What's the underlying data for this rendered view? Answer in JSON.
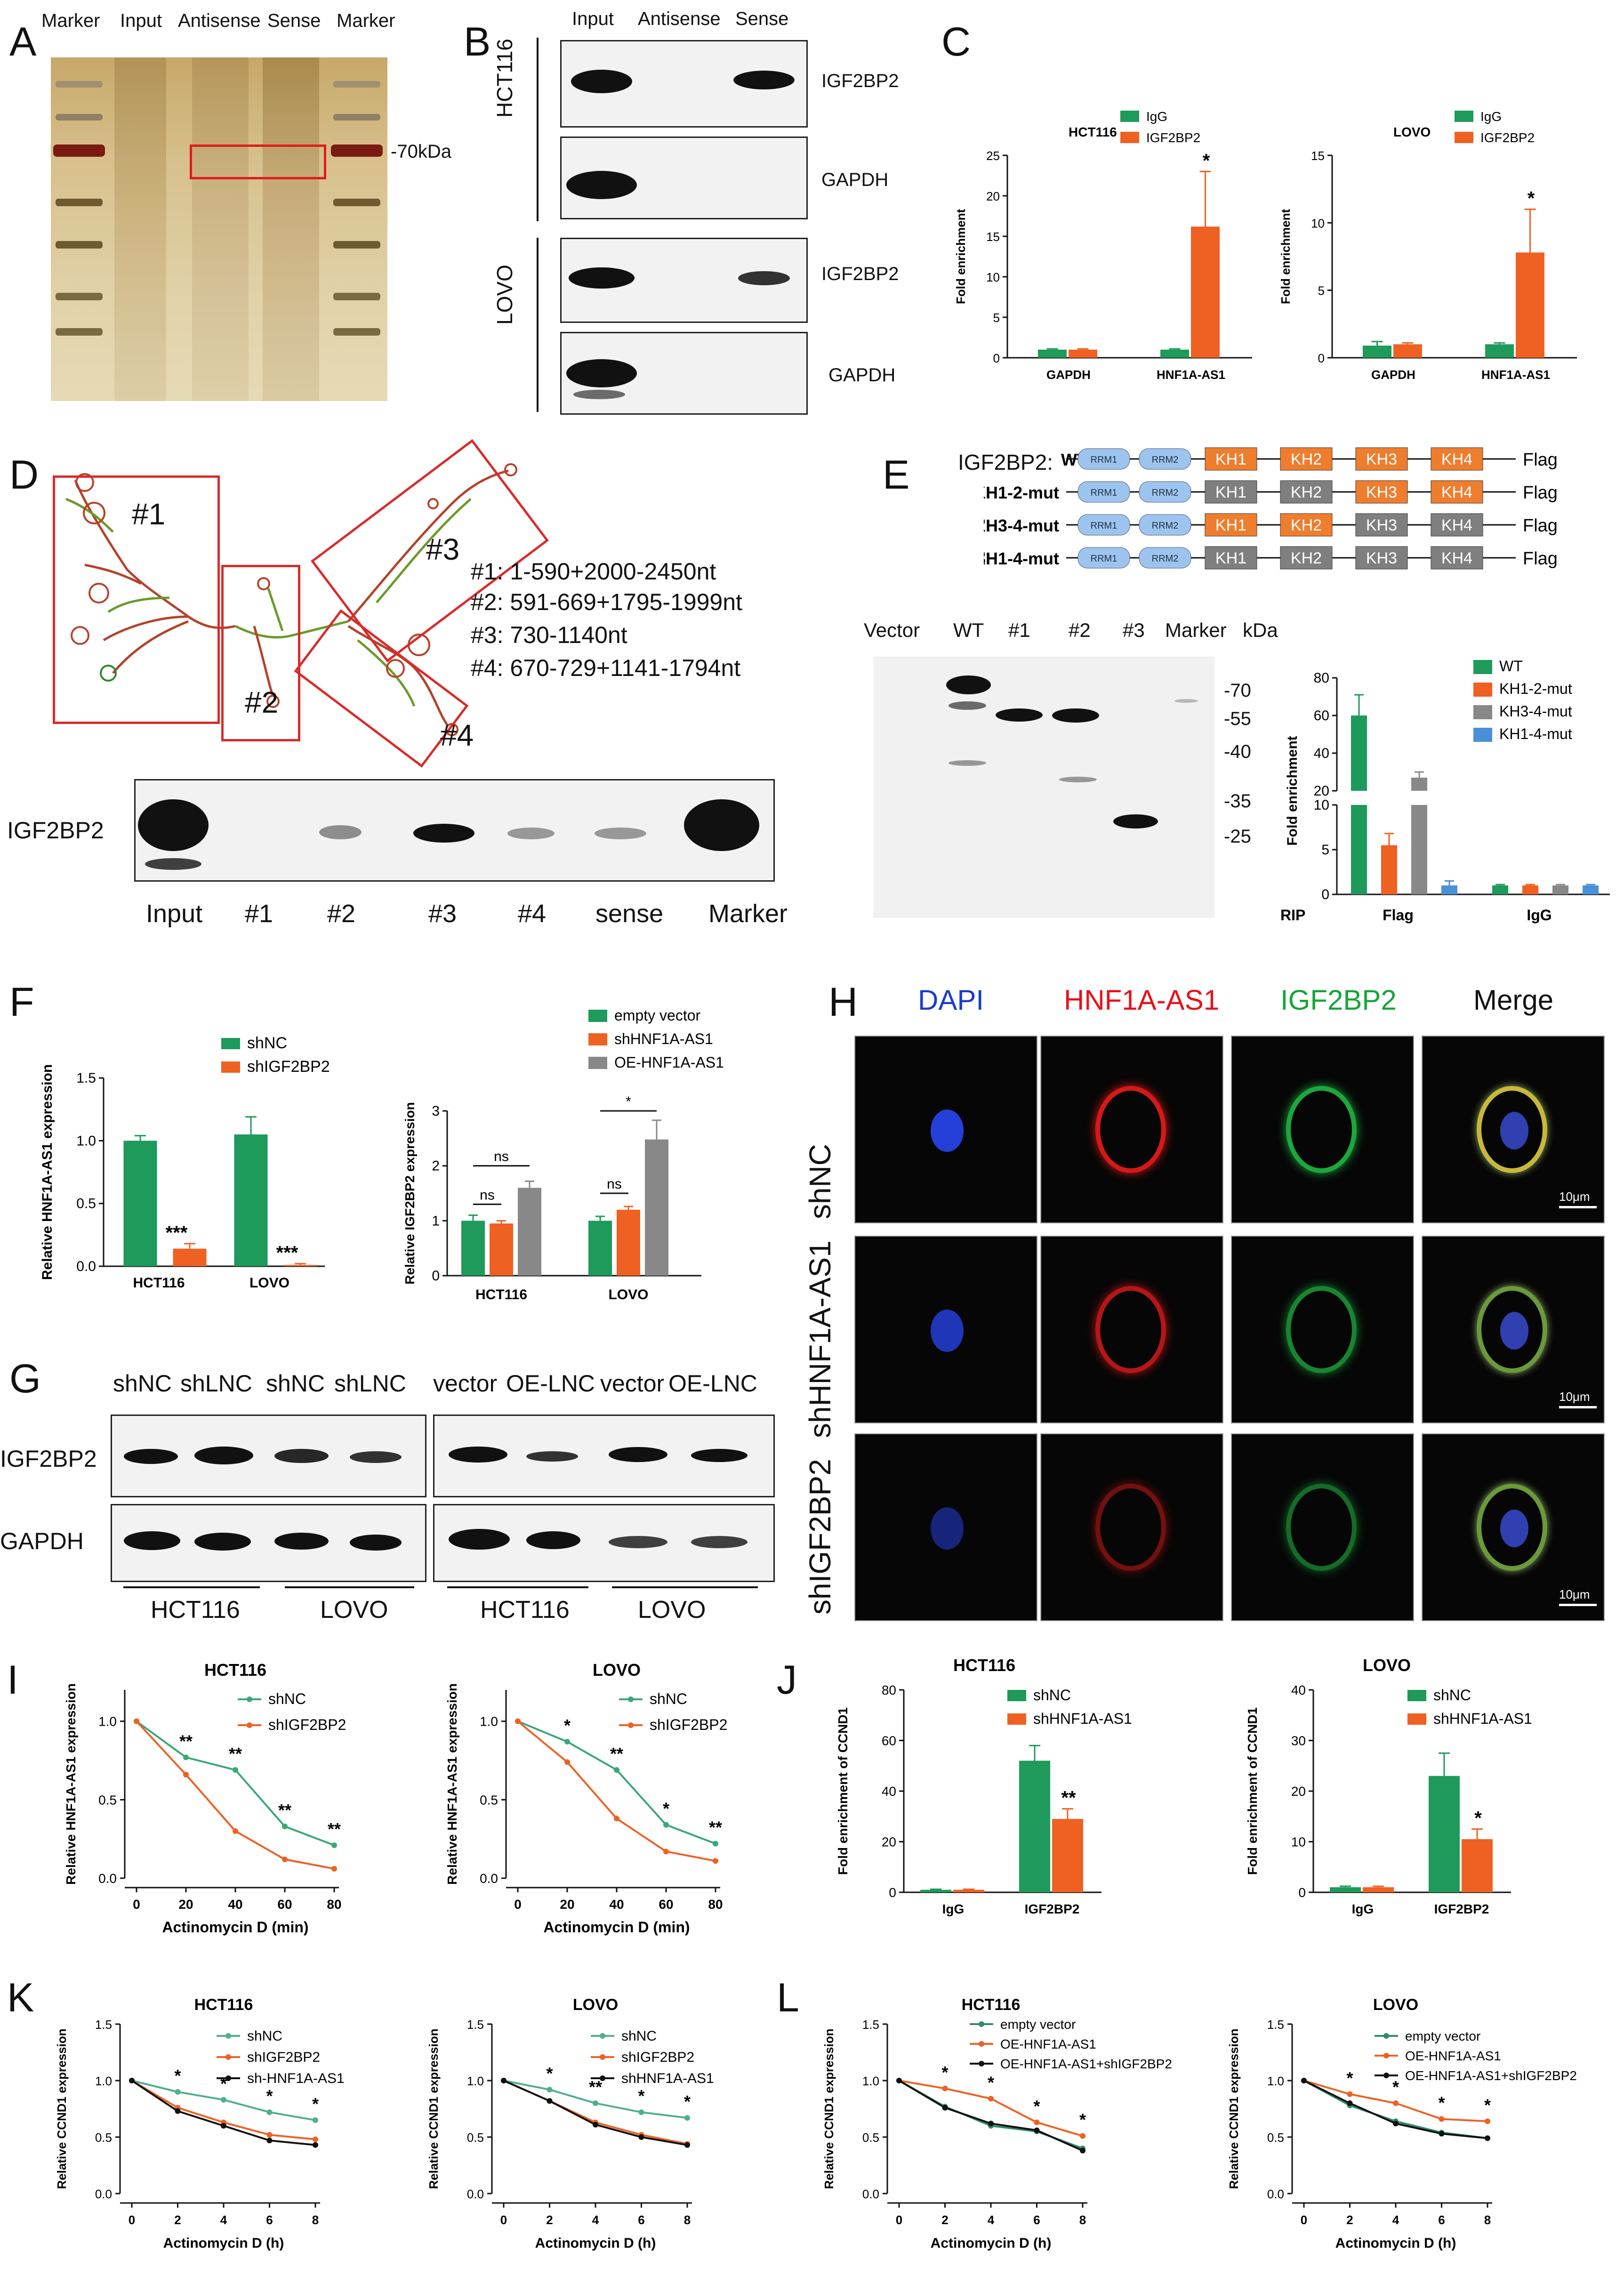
{
  "A": {
    "label": "A",
    "cols": [
      "Marker",
      "Input",
      "Antisense",
      "Sense",
      "Marker"
    ],
    "kda": "-70kDa"
  },
  "B": {
    "label": "B",
    "cols": [
      "Input",
      "Antisense",
      "Sense"
    ],
    "cells": [
      "HCT116",
      "LOVO"
    ],
    "proteins": [
      "IGF2BP2",
      "GAPDH",
      "IGF2BP2",
      "GAPDH"
    ]
  },
  "C": {
    "label": "C",
    "y_label": "Fold enrichment"
  },
  "D": {
    "label": "D",
    "region_ids": [
      "#1",
      "#2",
      "#3",
      "#4"
    ],
    "regions": [
      "#1: 1-590+2000-2450nt",
      "#2: 591-669+1795-1999nt",
      "#3: 730-1140nt",
      "#4: 670-729+1141-1794nt"
    ],
    "blot_label": "IGF2BP2",
    "lanes": [
      "Input",
      "#1",
      "#2",
      "#3",
      "#4",
      "sense",
      "Marker"
    ]
  },
  "E": {
    "label": "E",
    "title": "IGF2BP2:",
    "constructs": [
      {
        "id": "",
        "name": "WT",
        "domains": [
          "RRM1",
          "RRM2",
          "KH1",
          "KH2",
          "KH3",
          "KH4"
        ],
        "mut": [
          false,
          false,
          false,
          false
        ]
      },
      {
        "id": "#1:",
        "name": "KH1-2-mut",
        "domains": [
          "RRM1",
          "RRM2",
          "KH1",
          "KH2",
          "KH3",
          "KH4"
        ],
        "mut": [
          true,
          true,
          false,
          false
        ]
      },
      {
        "id": "#2:",
        "name": "KH3-4-mut",
        "domains": [
          "RRM1",
          "RRM2",
          "KH1",
          "KH2",
          "KH3",
          "KH4"
        ],
        "mut": [
          false,
          false,
          true,
          true
        ]
      },
      {
        "id": "#3:",
        "name": "KH1-4-mut",
        "domains": [
          "RRM1",
          "RRM2",
          "KH1",
          "KH2",
          "KH3",
          "KH4"
        ],
        "mut": [
          true,
          true,
          true,
          true
        ]
      }
    ],
    "tag": "Flag",
    "lanes": [
      "Vector",
      "WT",
      "#1",
      "#2",
      "#3",
      "Marker",
      "kDa"
    ],
    "markers": [
      "-70",
      "-55",
      "-40",
      "-35",
      "-25"
    ]
  },
  "F": {
    "label": "F"
  },
  "G": {
    "label": "G",
    "left_lanes": [
      "shNC",
      "shLNC",
      "shNC",
      "shLNC"
    ],
    "right_lanes": [
      "vector",
      "OE-LNC",
      "vector",
      "OE-LNC"
    ],
    "proteins": [
      "IGF2BP2",
      "GAPDH"
    ],
    "cells": [
      "HCT116",
      "LOVO",
      "HCT116",
      "LOVO"
    ]
  },
  "H": {
    "label": "H",
    "channels": [
      "DAPI",
      "HNF1A-AS1",
      "IGF2BP2",
      "Merge"
    ],
    "channel_colors": [
      "#1a3bd0",
      "#e8101a",
      "#17a43c",
      "#111111"
    ],
    "rows": [
      "shNC",
      "shHNF1A-AS1",
      "shIGF2BP2"
    ],
    "scale": "10μm"
  },
  "I": {
    "label": "I"
  },
  "J": {
    "label": "J"
  },
  "K": {
    "label": "K"
  },
  "L": {
    "label": "L"
  },
  "colors": {
    "green": "#1e9a5a",
    "orange": "#ee6123",
    "gray": "#888888",
    "blue": "#4a90d9",
    "black": "#111111"
  },
  "chart_data": [
    {
      "id": "C1",
      "type": "bar",
      "title": "HCT116",
      "categories": [
        "GAPDH",
        "HNF1A-AS1"
      ],
      "ylabel": "Fold enrichment",
      "ylim": [
        0,
        25
      ],
      "yticks": [
        0,
        5,
        10,
        15,
        20,
        25
      ],
      "series": [
        {
          "name": "IgG",
          "values": [
            1.0,
            1.0
          ],
          "err": [
            0.1,
            0.1
          ]
        },
        {
          "name": "IGF2BP2",
          "values": [
            1.0,
            16.2
          ],
          "err": [
            0.1,
            6.8
          ]
        }
      ],
      "sig": [
        {
          "cat": 1,
          "text": "*"
        }
      ]
    },
    {
      "id": "C2",
      "type": "bar",
      "title": "LOVO",
      "categories": [
        "GAPDH",
        "HNF1A-AS1"
      ],
      "ylabel": "Fold enrichment",
      "ylim": [
        0,
        15
      ],
      "yticks": [
        0,
        5,
        10,
        15
      ],
      "series": [
        {
          "name": "IgG",
          "values": [
            0.9,
            1.0
          ],
          "err": [
            0.3,
            0.1
          ]
        },
        {
          "name": "IGF2BP2",
          "values": [
            1.0,
            7.8
          ],
          "err": [
            0.1,
            3.2
          ]
        }
      ],
      "sig": [
        {
          "cat": 1,
          "text": "*"
        }
      ]
    },
    {
      "id": "E1",
      "type": "bar",
      "categories": [
        "Flag",
        "IgG"
      ],
      "xlabel_prefix": "RIP",
      "ylabel": "Fold enrichment",
      "broken": true,
      "yticks": [
        0,
        5,
        10,
        20,
        40,
        60,
        80
      ],
      "series": [
        {
          "name": "WT",
          "values": [
            60,
            1.0
          ],
          "err": [
            11,
            0.1
          ]
        },
        {
          "name": "KH1-2-mut",
          "values": [
            5.5,
            1.0
          ],
          "err": [
            1.3,
            0.1
          ]
        },
        {
          "name": "KH3-4-mut",
          "values": [
            27,
            1.0
          ],
          "err": [
            3,
            0.1
          ]
        },
        {
          "name": "KH1-4-mut",
          "values": [
            1.0,
            1.0
          ],
          "err": [
            0.5,
            0.1
          ]
        }
      ]
    },
    {
      "id": "F1",
      "type": "bar",
      "categories": [
        "HCT116",
        "LOVO"
      ],
      "ylabel": "Relative HNF1A-AS1 expression",
      "ylim": [
        0,
        1.5
      ],
      "yticks": [
        0.0,
        0.5,
        1.0,
        1.5
      ],
      "series": [
        {
          "name": "shNC",
          "values": [
            1.0,
            1.05
          ],
          "err": [
            0.04,
            0.14
          ]
        },
        {
          "name": "shIGF2BP2",
          "values": [
            0.14,
            0.01
          ],
          "err": [
            0.04,
            0.01
          ]
        }
      ],
      "sig": [
        {
          "cat": 0,
          "text": "***"
        },
        {
          "cat": 1,
          "text": "***"
        }
      ]
    },
    {
      "id": "F2",
      "type": "bar",
      "categories": [
        "HCT116",
        "LOVO"
      ],
      "ylabel": "Relative IGF2BP2 expression",
      "ylim": [
        0,
        3
      ],
      "yticks": [
        0,
        1,
        2,
        3
      ],
      "series": [
        {
          "name": "empty vector",
          "values": [
            1.0,
            1.0
          ],
          "err": [
            0.1,
            0.08
          ]
        },
        {
          "name": "shHNF1A-AS1",
          "values": [
            0.95,
            1.2
          ],
          "err": [
            0.05,
            0.06
          ]
        },
        {
          "name": "OE-HNF1A-AS1",
          "values": [
            1.6,
            2.48
          ],
          "err": [
            0.12,
            0.35
          ]
        }
      ],
      "sig": [
        {
          "text": "ns",
          "scope": "HCT116 vector vs sh"
        },
        {
          "text": "ns",
          "scope": "HCT116 vector vs OE"
        },
        {
          "text": "ns",
          "scope": "LOVO vector vs sh"
        },
        {
          "text": "*",
          "scope": "LOVO vector vs OE"
        }
      ]
    },
    {
      "id": "I1",
      "type": "line",
      "title": "HCT116",
      "x": [
        0,
        20,
        40,
        60,
        80
      ],
      "xlabel": "Actinomycin D (min)",
      "ylabel": "Relative HNF1A-AS1 expression",
      "xlim": [
        0,
        80
      ],
      "ylim": [
        0,
        1.2
      ],
      "yticks": [
        0.0,
        0.5,
        1.0
      ],
      "series": [
        {
          "name": "shNC",
          "values": [
            1.0,
            0.77,
            0.69,
            0.33,
            0.21
          ]
        },
        {
          "name": "shIGF2BP2",
          "values": [
            1.0,
            0.66,
            0.3,
            0.12,
            0.06
          ]
        }
      ],
      "sig": [
        "",
        "**",
        "**",
        "**",
        "**"
      ]
    },
    {
      "id": "I2",
      "type": "line",
      "title": "LOVO",
      "x": [
        0,
        20,
        40,
        60,
        80
      ],
      "xlabel": "Actinomycin D (min)",
      "ylabel": "Relative HNF1A-AS1 expression",
      "xlim": [
        0,
        80
      ],
      "ylim": [
        0,
        1.2
      ],
      "yticks": [
        0.0,
        0.5,
        1.0
      ],
      "series": [
        {
          "name": "shNC",
          "values": [
            1.0,
            0.87,
            0.69,
            0.34,
            0.22
          ]
        },
        {
          "name": "shIGF2BP2",
          "values": [
            1.0,
            0.74,
            0.38,
            0.17,
            0.11
          ]
        }
      ],
      "sig": [
        "",
        "*",
        "**",
        "*",
        "**"
      ]
    },
    {
      "id": "J1",
      "type": "bar",
      "title": "HCT116",
      "categories": [
        "IgG",
        "IGF2BP2"
      ],
      "ylabel": "Fold enrichment of CCND1",
      "ylim": [
        0,
        80
      ],
      "yticks": [
        0,
        20,
        40,
        60,
        80
      ],
      "series": [
        {
          "name": "shNC",
          "values": [
            1.0,
            52
          ]
        },
        {
          "name": "shHNF1A-AS1",
          "values": [
            1.0,
            29
          ]
        }
      ],
      "err": [
        [
          0.2,
          6
        ],
        [
          0.2,
          4
        ]
      ],
      "sig": [
        {
          "cat": 1,
          "text": "**"
        }
      ]
    },
    {
      "id": "J2",
      "type": "bar",
      "title": "LOVO",
      "categories": [
        "IgG",
        "IGF2BP2"
      ],
      "ylabel": "Fold enrichment of CCND1",
      "ylim": [
        0,
        40
      ],
      "yticks": [
        0,
        10,
        20,
        30,
        40
      ],
      "series": [
        {
          "name": "shNC",
          "values": [
            1.0,
            23
          ]
        },
        {
          "name": "shHNF1A-AS1",
          "values": [
            1.0,
            10.5
          ]
        }
      ],
      "err": [
        [
          0.2,
          4.5
        ],
        [
          0.2,
          2
        ]
      ],
      "sig": [
        {
          "cat": 1,
          "text": "*"
        }
      ]
    },
    {
      "id": "K1",
      "type": "line",
      "title": "HCT116",
      "x": [
        0,
        2,
        4,
        6,
        8
      ],
      "xlabel": "Actinomycin D (h)",
      "ylabel": "Relative CCND1 expression",
      "xlim": [
        0,
        8
      ],
      "ylim": [
        0,
        1.5
      ],
      "yticks": [
        0.0,
        0.5,
        1.0,
        1.5
      ],
      "series": [
        {
          "name": "shNC",
          "values": [
            1.0,
            0.9,
            0.83,
            0.72,
            0.65
          ]
        },
        {
          "name": "shIGF2BP2",
          "values": [
            1.0,
            0.76,
            0.63,
            0.52,
            0.48
          ]
        },
        {
          "name": "sh-HNF1A-AS1",
          "values": [
            1.0,
            0.73,
            0.6,
            0.47,
            0.43
          ]
        }
      ],
      "sig": [
        "",
        "*",
        "*",
        "*",
        "*"
      ]
    },
    {
      "id": "K2",
      "type": "line",
      "title": "LOVO",
      "x": [
        0,
        2,
        4,
        6,
        8
      ],
      "xlabel": "Actinomycin D (h)",
      "ylabel": "Relative CCND1 expression",
      "xlim": [
        0,
        8
      ],
      "ylim": [
        0,
        1.5
      ],
      "yticks": [
        0.0,
        0.5,
        1.0,
        1.5
      ],
      "series": [
        {
          "name": "shNC",
          "values": [
            1.0,
            0.92,
            0.8,
            0.72,
            0.67
          ]
        },
        {
          "name": "shIGF2BP2",
          "values": [
            1.0,
            0.82,
            0.63,
            0.52,
            0.44
          ]
        },
        {
          "name": "shHNF1A-AS1",
          "values": [
            1.0,
            0.82,
            0.61,
            0.5,
            0.43
          ]
        }
      ],
      "sig": [
        "",
        "*",
        "**",
        "*",
        "*"
      ]
    },
    {
      "id": "L1",
      "type": "line",
      "title": "HCT116",
      "x": [
        0,
        2,
        4,
        6,
        8
      ],
      "xlabel": "Actinomycin D (h)",
      "ylabel": "Relative CCND1 expression",
      "xlim": [
        0,
        8
      ],
      "ylim": [
        0,
        1.5
      ],
      "yticks": [
        0.0,
        0.5,
        1.0,
        1.5
      ],
      "series": [
        {
          "name": "empty vector",
          "values": [
            1.0,
            0.77,
            0.6,
            0.55,
            0.4
          ]
        },
        {
          "name": "OE-HNF1A-AS1",
          "values": [
            1.0,
            0.93,
            0.84,
            0.63,
            0.51
          ]
        },
        {
          "name": "OE-HNF1A-AS1+shIGF2BP2",
          "values": [
            1.0,
            0.76,
            0.62,
            0.56,
            0.38
          ]
        }
      ],
      "sig": [
        "",
        "*",
        "*",
        "*",
        "*"
      ]
    },
    {
      "id": "L2",
      "type": "line",
      "title": "LOVO",
      "x": [
        0,
        2,
        4,
        6,
        8
      ],
      "xlabel": "Actinomycin D (h)",
      "ylabel": "Relative CCND1 expression",
      "xlim": [
        0,
        8
      ],
      "ylim": [
        0,
        1.5
      ],
      "yticks": [
        0.0,
        0.5,
        1.0,
        1.5
      ],
      "series": [
        {
          "name": "empty vector",
          "values": [
            1.0,
            0.78,
            0.64,
            0.54,
            0.49
          ]
        },
        {
          "name": "OE-HNF1A-AS1",
          "values": [
            1.0,
            0.88,
            0.8,
            0.66,
            0.64
          ]
        },
        {
          "name": "OE-HNF1A-AS1+shIGF2BP2",
          "values": [
            1.0,
            0.8,
            0.62,
            0.53,
            0.49
          ]
        }
      ],
      "sig": [
        "",
        "*",
        "*",
        "*",
        "*"
      ]
    }
  ]
}
